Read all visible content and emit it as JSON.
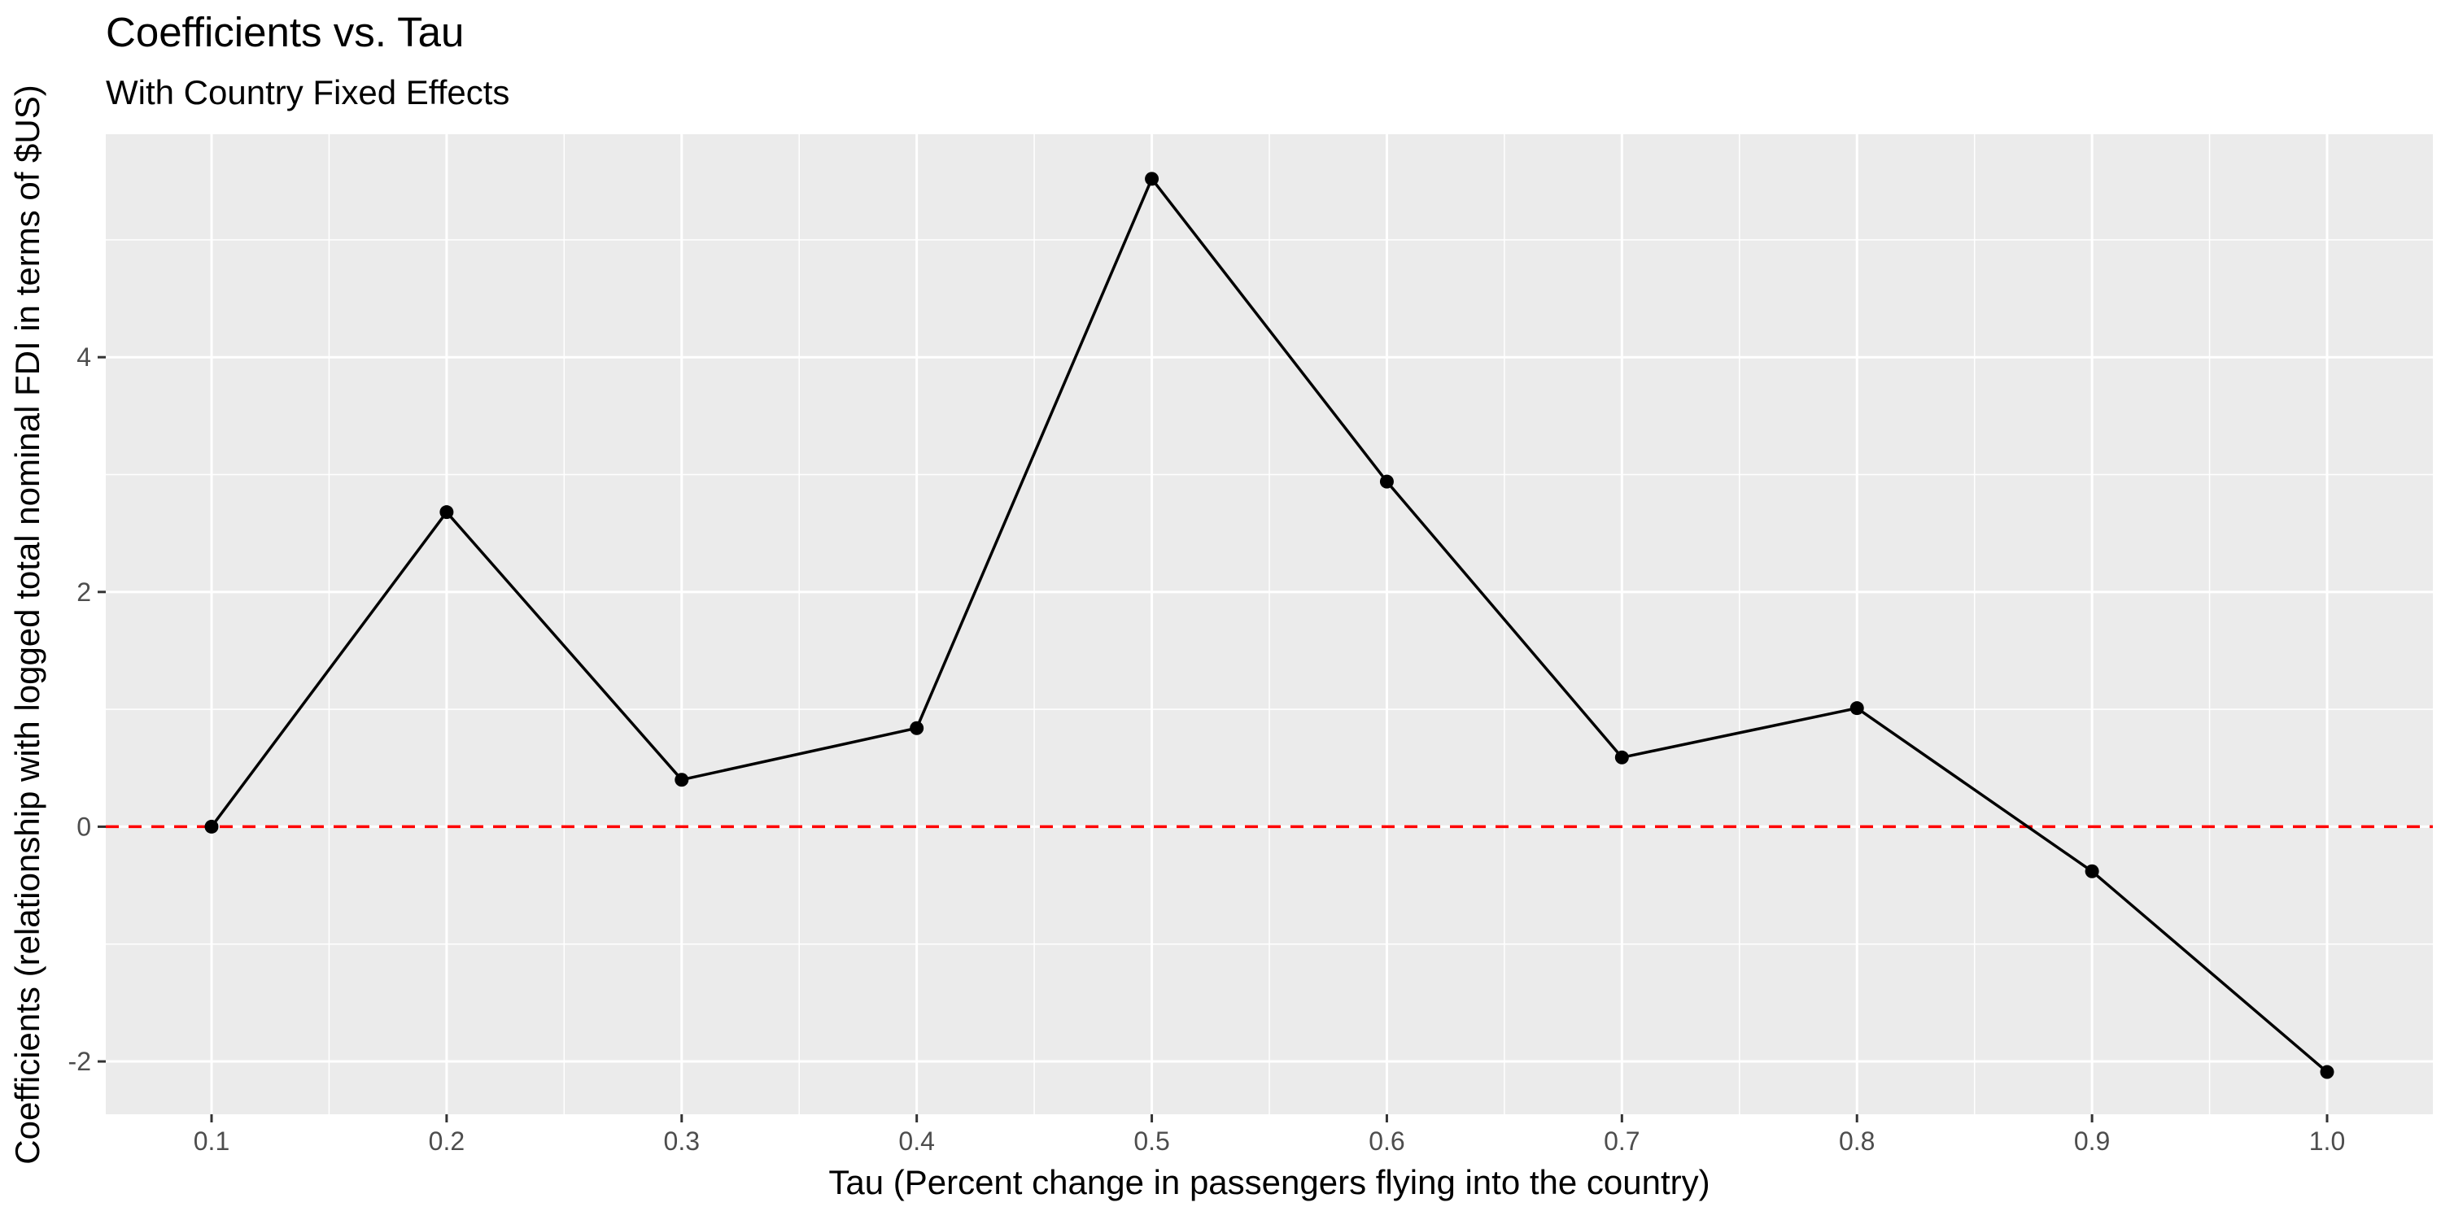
{
  "chart_data": {
    "type": "line",
    "title": "Coefficients vs. Tau",
    "subtitle": "With Country Fixed Effects",
    "xlabel": "Tau (Percent change in passengers flying into the country)",
    "ylabel": "Coefficients (relationship with logged total nominal FDI in terms of $US)",
    "x": [
      0.1,
      0.2,
      0.3,
      0.4,
      0.5,
      0.6,
      0.7,
      0.8,
      0.9,
      1.0
    ],
    "x_tick_labels": [
      "0.1",
      "0.2",
      "0.3",
      "0.4",
      "0.5",
      "0.6",
      "0.7",
      "0.8",
      "0.9",
      "1.0"
    ],
    "series": [
      {
        "values": [
          0.0,
          2.68,
          0.4,
          0.84,
          5.52,
          2.94,
          0.59,
          1.01,
          -0.38,
          -2.09
        ]
      }
    ],
    "y_ticks": [
      -2,
      0,
      2,
      4
    ],
    "y_tick_labels": [
      "-2",
      "0",
      "2",
      "4"
    ],
    "xlim": [
      0.055,
      1.045
    ],
    "ylim": [
      -2.45,
      5.9
    ],
    "reference_line": {
      "y": 0,
      "style": "dashed",
      "color": "#ff0000"
    },
    "grid": true,
    "legend": "none",
    "colors": {
      "panel_background": "#ebebeb",
      "grid": "#ffffff",
      "line": "#000000",
      "points": "#000000"
    }
  }
}
